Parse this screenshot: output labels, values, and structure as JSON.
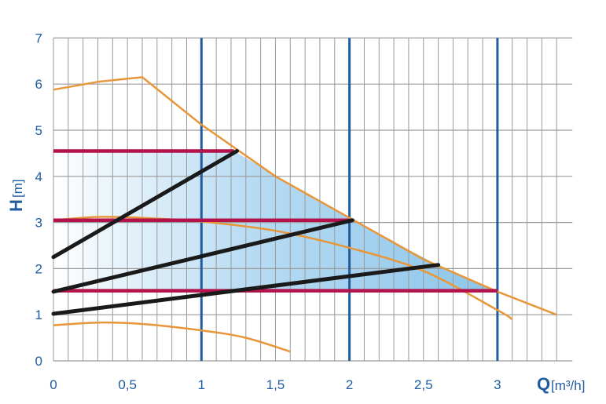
{
  "chart_data": {
    "type": "line",
    "title": "",
    "xlabel": {
      "symbol": "Q",
      "unit": "[m³/h]"
    },
    "ylabel": {
      "symbol": "H",
      "unit": "[m]"
    },
    "xlim": [
      0,
      3.4
    ],
    "ylim": [
      0,
      7
    ],
    "x_ticks": [
      "0",
      "0,5",
      "1",
      "1,5",
      "2",
      "2,5",
      "3"
    ],
    "y_ticks": [
      "0",
      "1",
      "2",
      "3",
      "4",
      "5",
      "6",
      "7"
    ],
    "x_tick_values": [
      0,
      0.5,
      1,
      1.5,
      2,
      2.5,
      3
    ],
    "y_tick_values": [
      0,
      1,
      2,
      3,
      4,
      5,
      6,
      7
    ],
    "grid": true,
    "minor_x_step": 0.1,
    "blue_vertical_lines_x": [
      1,
      2,
      3
    ],
    "colors": {
      "grid": "#9a9a9a",
      "blue_line": "#1f5da0",
      "curve": "#e8963a",
      "constant_pressure": "#b3124a",
      "proportional_pressure": "#1a1a1a",
      "area_fill": "#8cc5ea",
      "text": "#1f5da0"
    },
    "operating_area": {
      "points": [
        [
          0,
          4.55
        ],
        [
          1.22,
          4.55
        ],
        [
          2.02,
          3.05
        ],
        [
          2.6,
          2.07
        ],
        [
          3.0,
          1.52
        ],
        [
          0,
          1.52
        ],
        [
          0,
          1.0
        ]
      ]
    },
    "series": [
      {
        "kind": "max-curve",
        "points": [
          [
            0,
            5.88
          ],
          [
            0.3,
            6.05
          ],
          [
            0.6,
            6.15
          ],
          [
            1.0,
            5.12
          ],
          [
            1.5,
            4.0
          ],
          [
            2.0,
            3.1
          ],
          [
            2.5,
            2.2
          ],
          [
            3.0,
            1.5
          ],
          [
            3.4,
            1.0
          ]
        ]
      },
      {
        "kind": "mid-curve",
        "points": [
          [
            0,
            3.05
          ],
          [
            0.3,
            3.12
          ],
          [
            0.6,
            3.1
          ],
          [
            1.0,
            3.02
          ],
          [
            1.5,
            2.82
          ],
          [
            2.0,
            2.45
          ],
          [
            2.5,
            1.95
          ],
          [
            3.0,
            1.1
          ],
          [
            3.1,
            0.9
          ]
        ]
      },
      {
        "kind": "min-curve",
        "points": [
          [
            0,
            0.77
          ],
          [
            0.3,
            0.83
          ],
          [
            0.6,
            0.8
          ],
          [
            1.0,
            0.66
          ],
          [
            1.3,
            0.5
          ],
          [
            1.6,
            0.2
          ]
        ]
      },
      {
        "kind": "constant-pressure",
        "points": [
          [
            0,
            4.55
          ],
          [
            1.22,
            4.55
          ]
        ]
      },
      {
        "kind": "constant-pressure",
        "points": [
          [
            0,
            3.05
          ],
          [
            2.0,
            3.05
          ]
        ]
      },
      {
        "kind": "constant-pressure",
        "points": [
          [
            0,
            1.52
          ],
          [
            3.0,
            1.52
          ]
        ]
      },
      {
        "kind": "proportional-pressure",
        "points": [
          [
            0,
            2.25
          ],
          [
            1.24,
            4.55
          ]
        ]
      },
      {
        "kind": "proportional-pressure",
        "points": [
          [
            0,
            1.5
          ],
          [
            2.02,
            3.05
          ]
        ]
      },
      {
        "kind": "proportional-pressure",
        "points": [
          [
            0,
            1.02
          ],
          [
            2.6,
            2.08
          ]
        ]
      }
    ]
  }
}
